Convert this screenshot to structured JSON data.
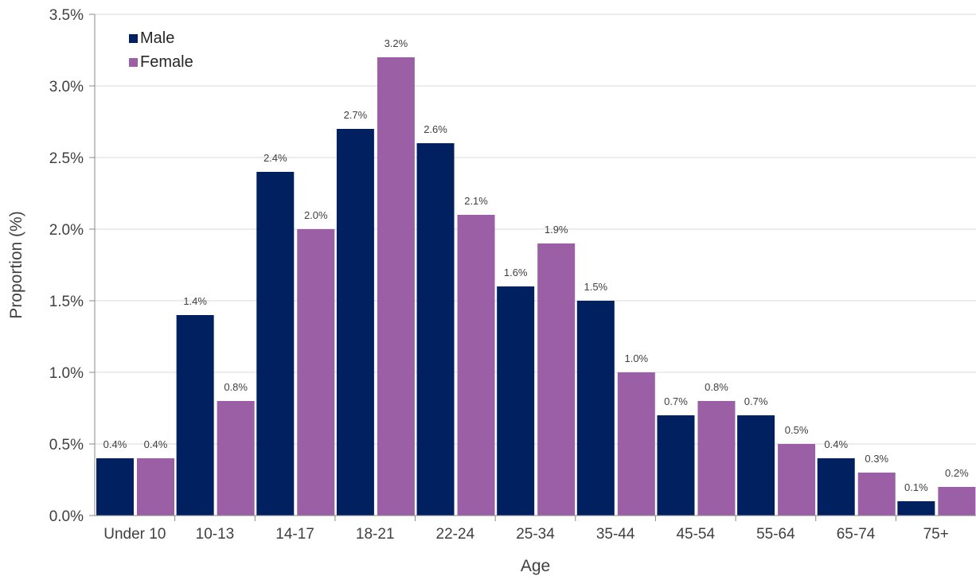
{
  "chart_data": {
    "type": "bar",
    "title": "",
    "xlabel": "Age",
    "ylabel": "Proportion (%)",
    "ylim": [
      0,
      3.5
    ],
    "yticks": [
      "0.0%",
      "0.5%",
      "1.0%",
      "1.5%",
      "2.0%",
      "2.5%",
      "3.0%",
      "3.5%"
    ],
    "ytick_values": [
      0,
      0.5,
      1.0,
      1.5,
      2.0,
      2.5,
      3.0,
      3.5
    ],
    "grid": true,
    "legend_position": "top-left",
    "categories": [
      "Under 10",
      "10-13",
      "14-17",
      "18-21",
      "22-24",
      "25-34",
      "35-44",
      "45-54",
      "55-64",
      "65-74",
      "75+"
    ],
    "series": [
      {
        "name": "Male",
        "color": "#002060",
        "values": [
          0.4,
          1.4,
          2.4,
          2.7,
          2.6,
          1.6,
          1.5,
          0.7,
          0.7,
          0.4,
          0.1
        ],
        "labels": [
          "0.4%",
          "1.4%",
          "2.4%",
          "2.7%",
          "2.6%",
          "1.6%",
          "1.5%",
          "0.7%",
          "0.7%",
          "0.4%",
          "0.1%"
        ]
      },
      {
        "name": "Female",
        "color": "#9B5FA5",
        "values": [
          0.4,
          0.8,
          2.0,
          3.2,
          2.1,
          1.9,
          1.0,
          0.8,
          0.5,
          0.3,
          0.2
        ],
        "labels": [
          "0.4%",
          "0.8%",
          "2.0%",
          "3.2%",
          "2.1%",
          "1.9%",
          "1.0%",
          "0.8%",
          "0.5%",
          "0.3%",
          "0.2%"
        ]
      }
    ]
  }
}
